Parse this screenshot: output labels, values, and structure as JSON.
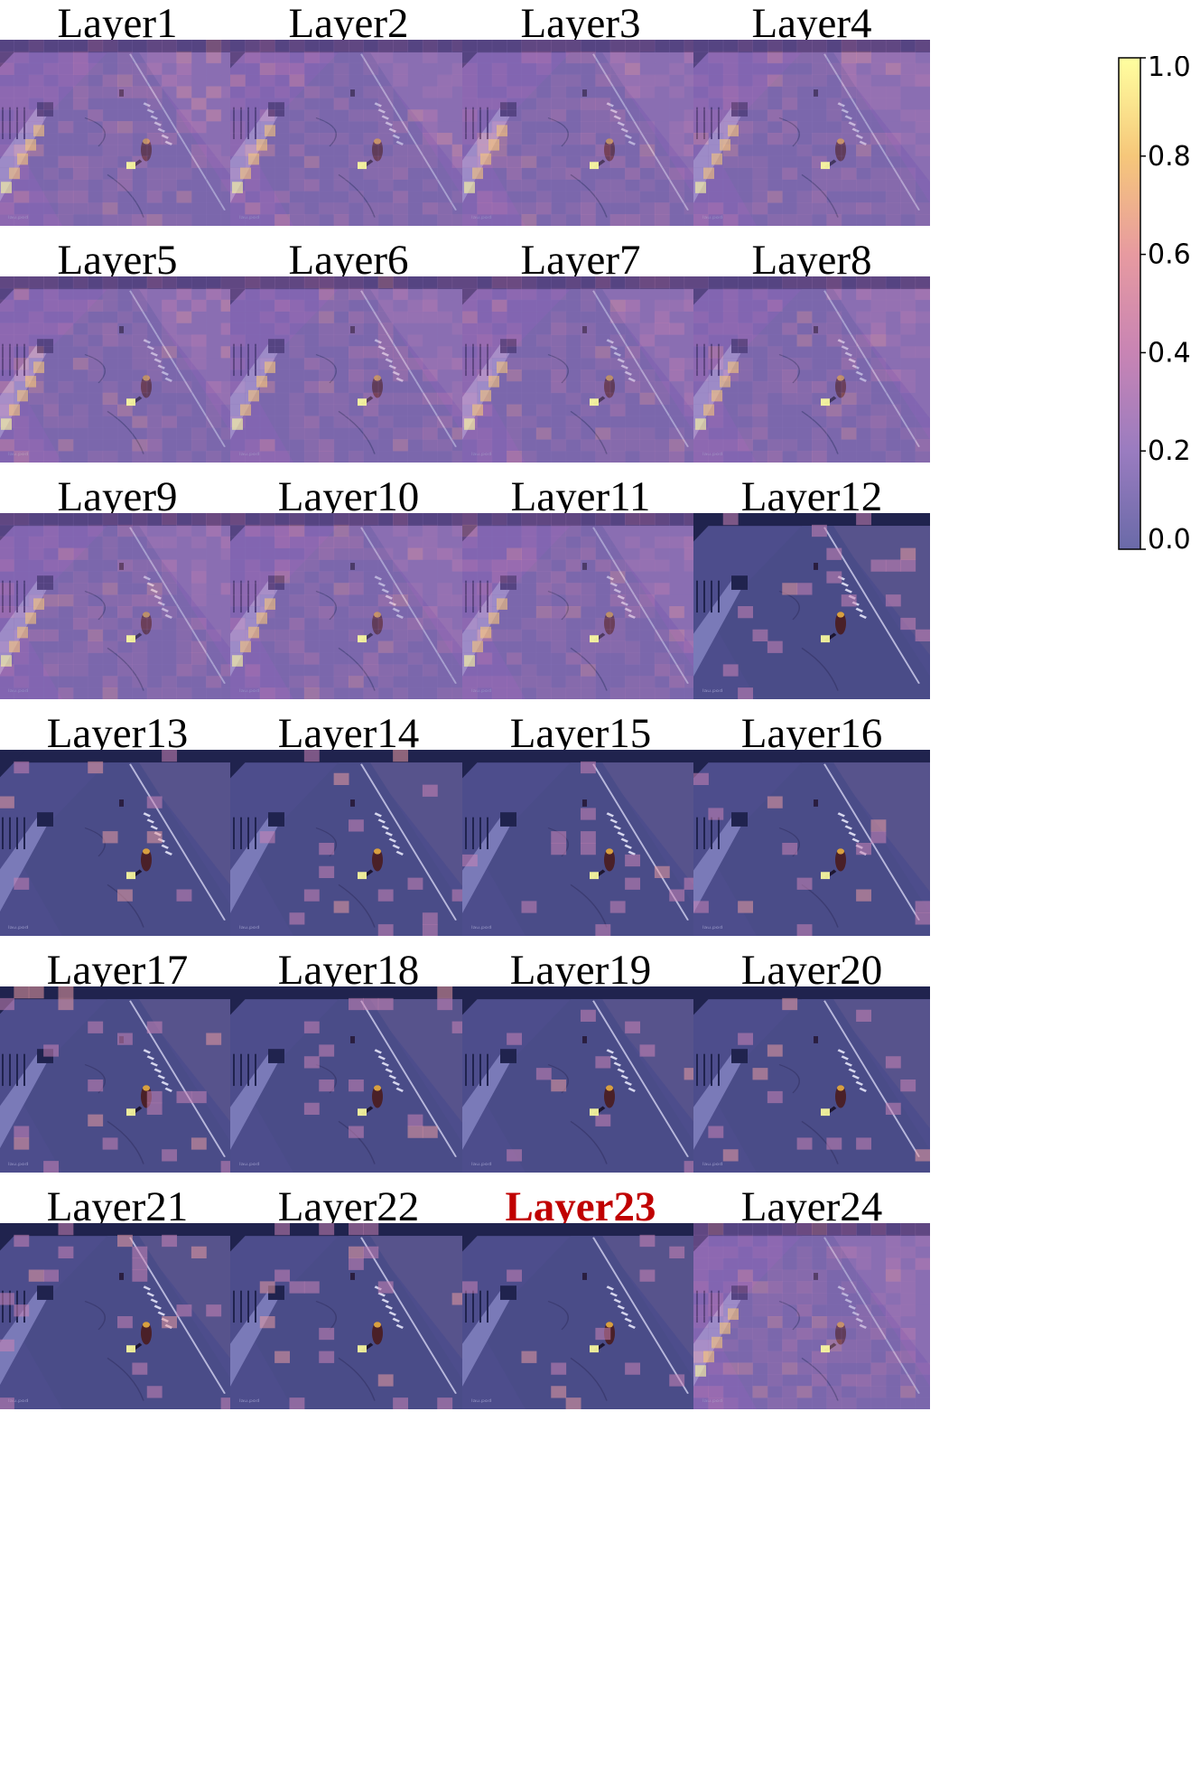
{
  "panels": [
    {
      "label": "Layer1"
    },
    {
      "label": "Layer2"
    },
    {
      "label": "Layer3"
    },
    {
      "label": "Layer4"
    },
    {
      "label": "Layer5"
    },
    {
      "label": "Layer6"
    },
    {
      "label": "Layer7"
    },
    {
      "label": "Layer8"
    },
    {
      "label": "Layer9"
    },
    {
      "label": "Layer10"
    },
    {
      "label": "Layer11"
    },
    {
      "label": "Layer12"
    },
    {
      "label": "Layer13"
    },
    {
      "label": "Layer14"
    },
    {
      "label": "Layer15"
    },
    {
      "label": "Layer16"
    },
    {
      "label": "Layer17"
    },
    {
      "label": "Layer18"
    },
    {
      "label": "Layer19"
    },
    {
      "label": "Layer20"
    },
    {
      "label": "Layer21"
    },
    {
      "label": "Layer22"
    },
    {
      "label": "Layer23",
      "highlight": true
    },
    {
      "label": "Layer24"
    }
  ],
  "colorbar": {
    "ticks": [
      "1.0",
      "0.8",
      "0.6",
      "0.4",
      "0.2",
      "0.0"
    ],
    "colors": [
      "#ffffa0",
      "#f6c77a",
      "#e79aa0",
      "#c884b4",
      "#9a7cc0",
      "#6a6aa8"
    ]
  },
  "watermark": "lau.pod"
}
